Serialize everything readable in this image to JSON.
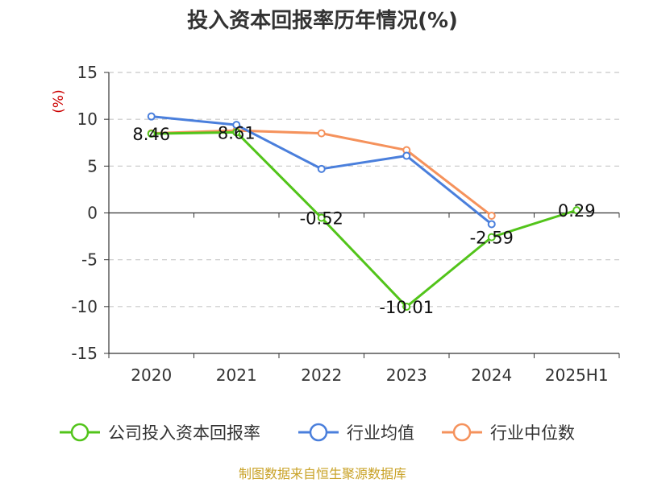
{
  "chart_data": {
    "type": "line",
    "title": "投入资本回报率历年情况(%)",
    "ylabel": "(%)",
    "xlabel": "",
    "categories": [
      "2020",
      "2021",
      "2022",
      "2023",
      "2024",
      "2025H1"
    ],
    "ylim": [
      -15,
      15
    ],
    "yticks": [
      15,
      10,
      5,
      0,
      -5,
      -10,
      -15
    ],
    "grid": true,
    "legend_position": "bottom",
    "series": [
      {
        "name": "公司投入资本回报率",
        "color": "#52c41a",
        "values": [
          8.46,
          8.61,
          -0.52,
          -10.01,
          -2.59,
          0.29
        ],
        "labels": [
          "8.46",
          "8.61",
          "-0.52",
          "-10.01",
          "-2.59",
          "0.29"
        ]
      },
      {
        "name": "行业均值",
        "color": "#4a7fdc",
        "values": [
          10.3,
          9.4,
          4.7,
          6.1,
          -1.2,
          null
        ]
      },
      {
        "name": "行业中位数",
        "color": "#f5925c",
        "values": [
          8.5,
          8.8,
          8.5,
          6.7,
          -0.3,
          null
        ]
      }
    ]
  },
  "source": "制图数据来自恒生聚源数据库"
}
